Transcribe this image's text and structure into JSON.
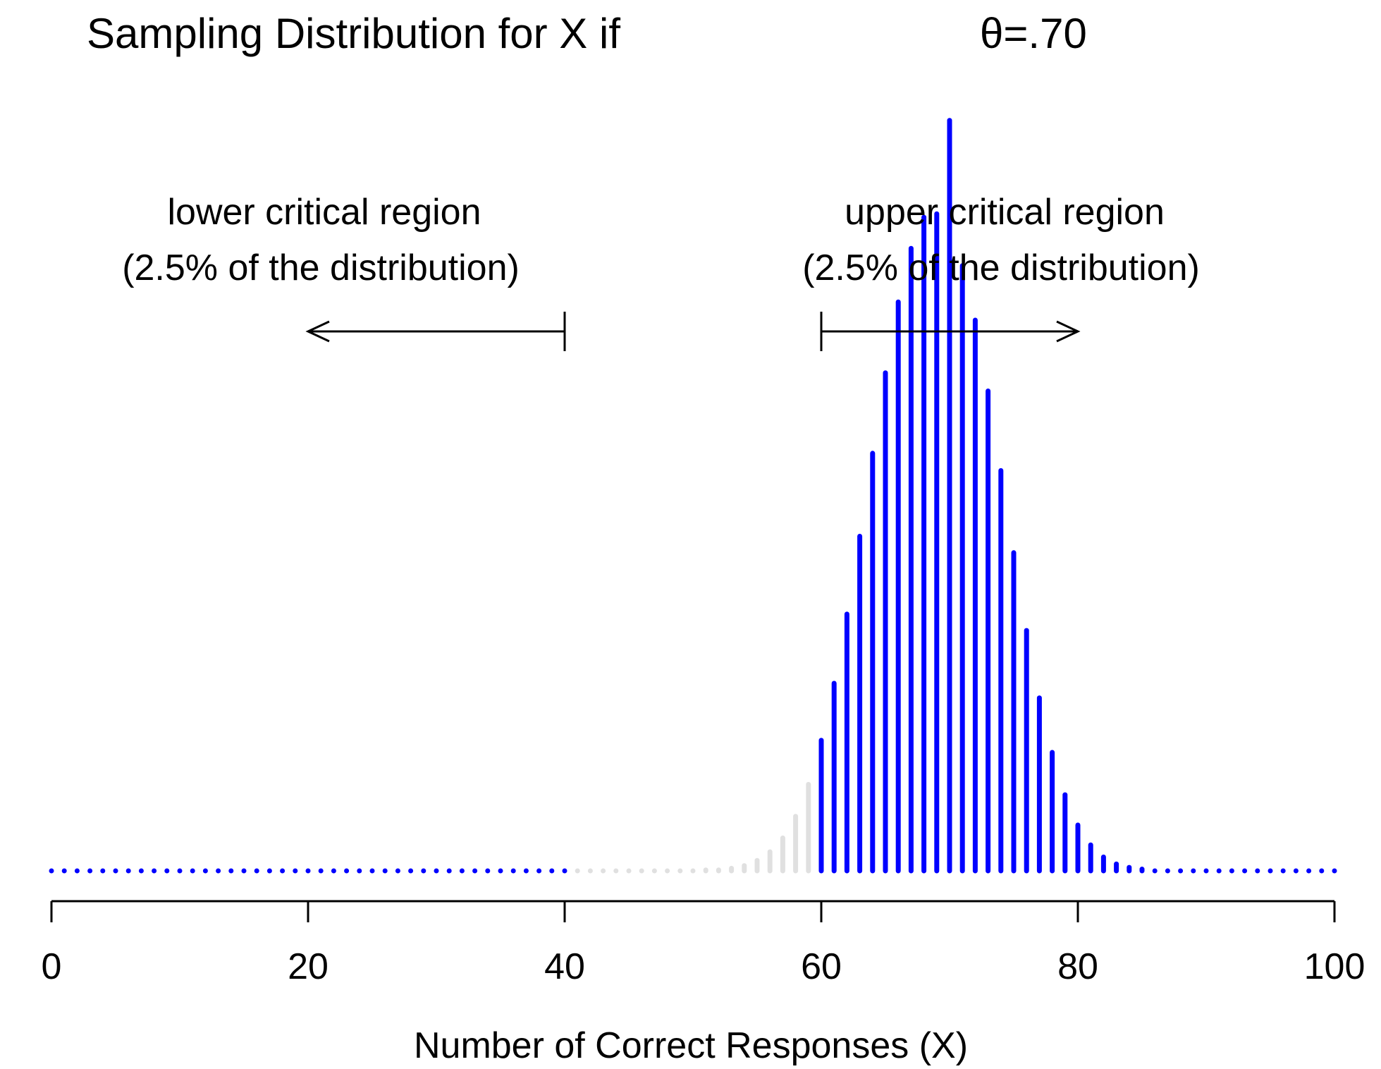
{
  "chart_data": {
    "type": "bar",
    "title": "Sampling Distribution for X if",
    "title_theta": "θ=.70",
    "xlabel": "Number of Correct Responses (X)",
    "ylabel": "",
    "xlim": [
      0,
      100
    ],
    "ylim": [
      0,
      0.0867
    ],
    "x_ticks": [
      "0",
      "20",
      "40",
      "60",
      "80",
      "100"
    ],
    "n": 100,
    "theta": 0.7,
    "grid": false,
    "colors": {
      "critical_region": "#0000ff",
      "non_critical": "#e0e0e0",
      "text": "#000000"
    },
    "regions": {
      "lower_bound": 40,
      "upper_bound": 60
    },
    "annotations": [
      {
        "name": "lower",
        "line1": "lower critical region",
        "line2": "(2.5% of the distribution)",
        "arrow_from": 40,
        "arrow_to": 20
      },
      {
        "name": "upper",
        "line1": "upper critical region",
        "line2": "(2.5% of the distribution)",
        "arrow_from": 60,
        "arrow_to": 80
      }
    ],
    "x": [
      0,
      1,
      2,
      3,
      4,
      5,
      6,
      7,
      8,
      9,
      10,
      11,
      12,
      13,
      14,
      15,
      16,
      17,
      18,
      19,
      20,
      21,
      22,
      23,
      24,
      25,
      26,
      27,
      28,
      29,
      30,
      31,
      32,
      33,
      34,
      35,
      36,
      37,
      38,
      39,
      40,
      41,
      42,
      43,
      44,
      45,
      46,
      47,
      48,
      49,
      50,
      51,
      52,
      53,
      54,
      55,
      56,
      57,
      58,
      59,
      60,
      61,
      62,
      63,
      64,
      65,
      66,
      67,
      68,
      69,
      70,
      71,
      72,
      73,
      74,
      75,
      76,
      77,
      78,
      79,
      80,
      81,
      82,
      83,
      84,
      85,
      86,
      87,
      88,
      89,
      90,
      91,
      92,
      93,
      94,
      95,
      96,
      97,
      98,
      99,
      100
    ],
    "values": [
      0,
      0,
      0,
      0,
      0,
      0,
      0,
      0,
      0,
      0,
      0,
      0,
      0,
      0,
      0,
      0,
      0,
      0,
      0,
      0,
      0,
      0,
      0,
      0,
      0,
      0,
      0,
      0,
      0,
      0,
      0,
      0,
      0,
      0,
      0,
      0,
      0,
      0,
      0,
      0,
      0,
      0,
      0,
      0,
      0,
      0,
      0,
      0,
      0,
      0,
      0,
      0.0001,
      0.0001,
      0.0003,
      0.0006,
      0.0012,
      0.0022,
      0.0038,
      0.0063,
      0.01,
      0.0151,
      0.0217,
      0.0297,
      0.0387,
      0.0483,
      0.0576,
      0.0658,
      0.072,
      0.0756,
      0.076,
      0.0868,
      0.07,
      0.0637,
      0.0555,
      0.0463,
      0.0368,
      0.0278,
      0.02,
      0.0137,
      0.0088,
      0.0053,
      0.003,
      0.0016,
      0.0008,
      0.0004,
      0.0002,
      0,
      0,
      0,
      0,
      0,
      0,
      0,
      0,
      0,
      0,
      0,
      0,
      0,
      0,
      0
    ]
  }
}
